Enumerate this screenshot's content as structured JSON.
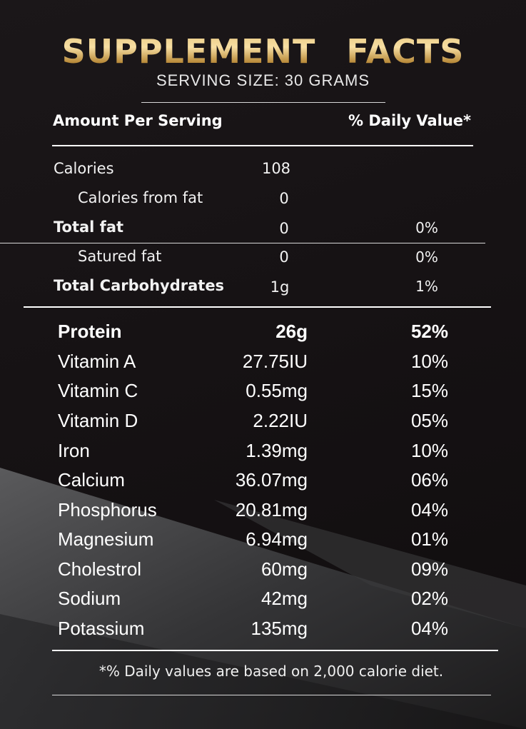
{
  "label": {
    "title": "SUPPLEMENT   FACTS",
    "serving_size": "SERVING SIZE: 30 GRAMS",
    "header_left": "Amount Per Serving",
    "header_right": "% Daily Value*",
    "summary_rows": [
      {
        "name": "Calories",
        "amount": "108",
        "dv": "",
        "bold": false,
        "indent": false
      },
      {
        "name": "Calories from fat",
        "amount": "0",
        "dv": "",
        "bold": false,
        "indent": true
      },
      {
        "name": "Total fat",
        "amount": "0",
        "dv": "0%",
        "bold": true,
        "indent": false
      },
      {
        "name": "Satured fat",
        "amount": "0",
        "dv": "0%",
        "bold": false,
        "indent": true
      },
      {
        "name": "Total Carbohydrates",
        "amount": "1g",
        "dv": "1%",
        "bold": true,
        "indent": false
      }
    ],
    "nutrients": [
      {
        "name": "Protein",
        "amount": "26g",
        "dv": "52%",
        "bold": true
      },
      {
        "name": "Vitamin A",
        "amount": "27.75IU",
        "dv": "10%",
        "bold": false
      },
      {
        "name": "Vitamin C",
        "amount": "0.55mg",
        "dv": "15%",
        "bold": false
      },
      {
        "name": "Vitamin D",
        "amount": "2.22IU",
        "dv": "05%",
        "bold": false
      },
      {
        "name": "Iron",
        "amount": "1.39mg",
        "dv": "10%",
        "bold": false
      },
      {
        "name": "Calcium",
        "amount": "36.07mg",
        "dv": "06%",
        "bold": false
      },
      {
        "name": "Phosphorus",
        "amount": "20.81mg",
        "dv": "04%",
        "bold": false
      },
      {
        "name": "Magnesium",
        "amount": "6.94mg",
        "dv": "01%",
        "bold": false
      },
      {
        "name": "Cholestrol",
        "amount": "60mg",
        "dv": "09%",
        "bold": false
      },
      {
        "name": "Sodium",
        "amount": "42mg",
        "dv": "02%",
        "bold": false
      },
      {
        "name": "Potassium",
        "amount": "135mg",
        "dv": "04%",
        "bold": false
      }
    ],
    "footnote": "*% Daily values are based on 2,000 calorie diet."
  },
  "colors": {
    "background": "#161214",
    "gold": "#d9ae5b",
    "text": "#ffffff"
  }
}
